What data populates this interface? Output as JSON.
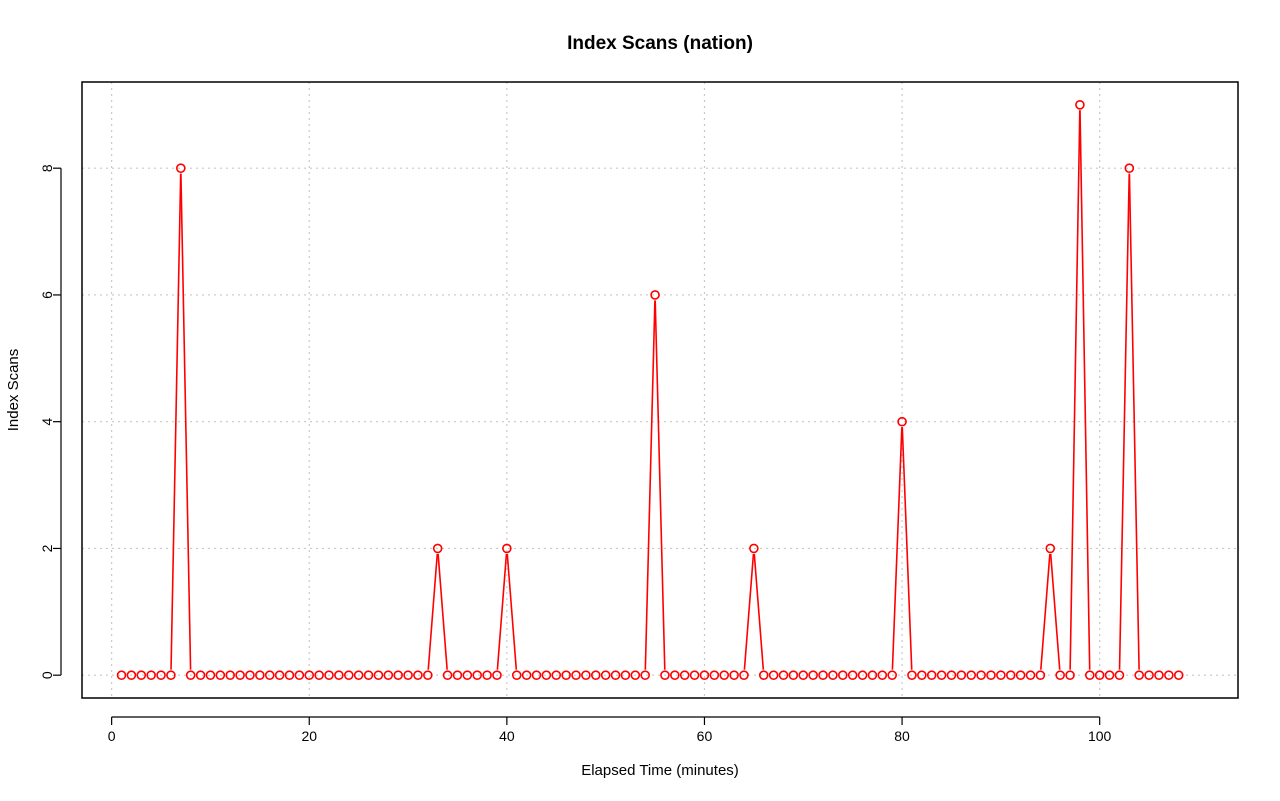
{
  "chart_data": {
    "type": "line",
    "title": "Index Scans (nation)",
    "xlabel": "Elapsed Time (minutes)",
    "ylabel": "Index Scans",
    "xlim": [
      -3,
      114
    ],
    "ylim": [
      -0.36,
      9.36
    ],
    "x_ticks": [
      0,
      20,
      40,
      60,
      80,
      100
    ],
    "y_ticks": [
      0,
      2,
      4,
      6,
      8
    ],
    "grid": true,
    "line_color": "#ff0000",
    "x": [
      1,
      2,
      3,
      4,
      5,
      6,
      7,
      8,
      9,
      10,
      11,
      12,
      13,
      14,
      15,
      16,
      17,
      18,
      19,
      20,
      21,
      22,
      23,
      24,
      25,
      26,
      27,
      28,
      29,
      30,
      31,
      32,
      33,
      34,
      35,
      36,
      37,
      38,
      39,
      40,
      41,
      42,
      43,
      44,
      45,
      46,
      47,
      48,
      49,
      50,
      51,
      52,
      53,
      54,
      55,
      56,
      57,
      58,
      59,
      60,
      61,
      62,
      63,
      64,
      65,
      66,
      67,
      68,
      69,
      70,
      71,
      72,
      73,
      74,
      75,
      76,
      77,
      78,
      79,
      80,
      81,
      82,
      83,
      84,
      85,
      86,
      87,
      88,
      89,
      90,
      91,
      92,
      93,
      94,
      95,
      96,
      97,
      98,
      99,
      100,
      101,
      102,
      103,
      104,
      105,
      106,
      107,
      108
    ],
    "y": [
      0,
      0,
      0,
      0,
      0,
      0,
      8,
      0,
      0,
      0,
      0,
      0,
      0,
      0,
      0,
      0,
      0,
      0,
      0,
      0,
      0,
      0,
      0,
      0,
      0,
      0,
      0,
      0,
      0,
      0,
      0,
      0,
      2,
      0,
      0,
      0,
      0,
      0,
      0,
      2,
      0,
      0,
      0,
      0,
      0,
      0,
      0,
      0,
      0,
      0,
      0,
      0,
      0,
      0,
      6,
      0,
      0,
      0,
      0,
      0,
      0,
      0,
      0,
      0,
      2,
      0,
      0,
      0,
      0,
      0,
      0,
      0,
      0,
      0,
      0,
      0,
      0,
      0,
      0,
      4,
      0,
      0,
      0,
      0,
      0,
      0,
      0,
      0,
      0,
      0,
      0,
      0,
      0,
      0,
      2,
      0,
      0,
      9,
      0,
      0,
      0,
      0,
      8,
      0,
      0,
      0,
      0,
      0
    ]
  }
}
